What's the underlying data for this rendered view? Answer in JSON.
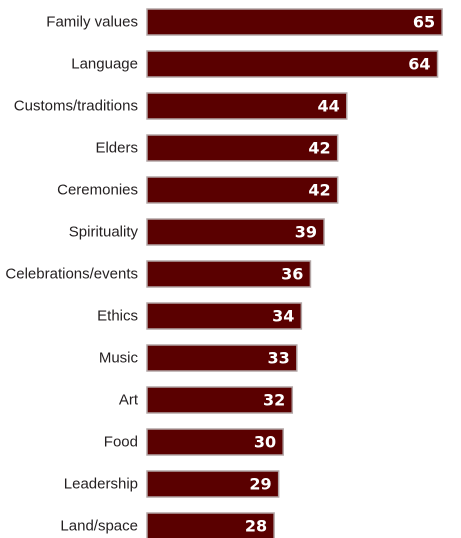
{
  "chart_data": {
    "type": "bar",
    "orientation": "horizontal",
    "categories": [
      "Family values",
      "Language",
      "Customs/traditions",
      "Elders",
      "Ceremonies",
      "Spirituality",
      "Celebrations/events",
      "Ethics",
      "Music",
      "Art",
      "Food",
      "Leadership",
      "Land/space"
    ],
    "values": [
      65,
      64,
      44,
      42,
      42,
      39,
      36,
      34,
      33,
      32,
      30,
      29,
      28
    ],
    "value_labels": [
      "65",
      "64",
      "44",
      "42",
      "42",
      "39",
      "36",
      "34",
      "33",
      "32",
      "30",
      "29",
      "28"
    ],
    "bar_color": "#5a0000",
    "label_color": "#ffffff",
    "title": "",
    "xlabel": "",
    "ylabel": "",
    "xlim": [
      0,
      65
    ],
    "grid": false,
    "legend": "none"
  }
}
